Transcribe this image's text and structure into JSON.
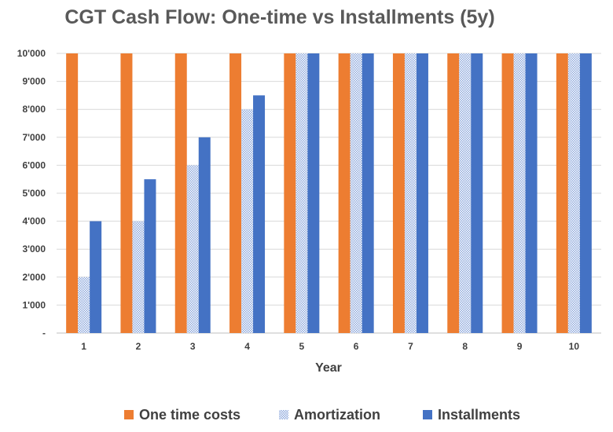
{
  "chart_data": {
    "type": "bar",
    "title": "CGT Cash Flow: One-time vs Installments (5y)",
    "xlabel": "Year",
    "ylabel": "",
    "categories": [
      "1",
      "2",
      "3",
      "4",
      "5",
      "6",
      "7",
      "8",
      "9",
      "10"
    ],
    "series": [
      {
        "name": "One time costs",
        "values": [
          10000,
          10000,
          10000,
          10000,
          10000,
          10000,
          10000,
          10000,
          10000,
          10000
        ],
        "color": "#ED7D31",
        "pattern": "solid"
      },
      {
        "name": "Amortization",
        "values": [
          2000,
          4000,
          6000,
          8000,
          10000,
          10000,
          10000,
          10000,
          10000,
          10000
        ],
        "color": "#4472C4",
        "pattern": "dotted"
      },
      {
        "name": "Installments",
        "values": [
          4000,
          5500,
          7000,
          8500,
          10000,
          10000,
          10000,
          10000,
          10000,
          10000
        ],
        "color": "#4472C4",
        "pattern": "solid"
      }
    ],
    "ylim": [
      0,
      10000
    ],
    "yticks": [
      0,
      1000,
      2000,
      3000,
      4000,
      5000,
      6000,
      7000,
      8000,
      9000,
      10000
    ],
    "ytick_labels": [
      "-",
      "1'000",
      "2'000",
      "3'000",
      "4'000",
      "5'000",
      "6'000",
      "7'000",
      "8'000",
      "9'000",
      "10'000"
    ],
    "grid": true,
    "legend_position": "bottom"
  }
}
